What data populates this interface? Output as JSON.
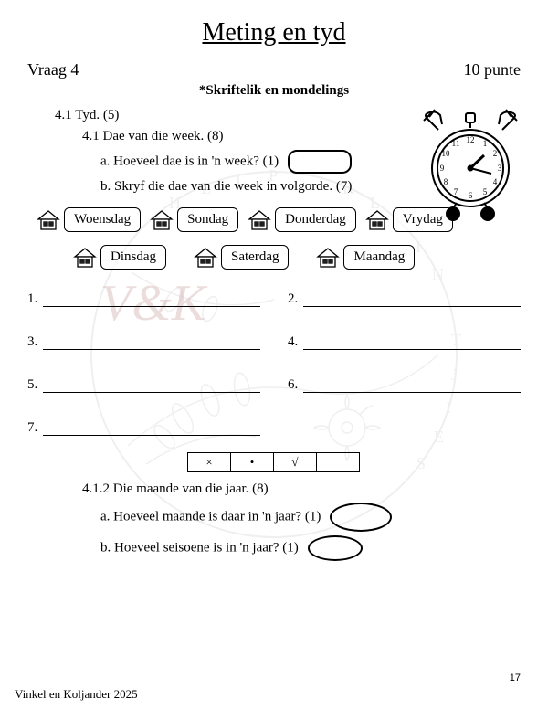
{
  "title": "Meting en tyd",
  "question_label": "Vraag 4",
  "points_label": "10 punte",
  "subtitle": "*Skriftelik en mondelings",
  "q41": "4.1 Tyd. (5)",
  "q41sub": "4.1 Dae van die week. (8)",
  "q41a": "a. Hoeveel dae is in 'n week? (1)",
  "q41b": "b. Skryf die dae van die week in volgorde. (7)",
  "days_row1": [
    "Woensdag",
    "Sondag",
    "Donderdag",
    "Vrydag"
  ],
  "days_row2": [
    "Dinsdag",
    "Saterdag",
    "Maandag"
  ],
  "blanks": [
    "1.",
    "2.",
    "3.",
    "4.",
    "5.",
    "6.",
    "7."
  ],
  "eval": [
    "×",
    "•",
    "√",
    ""
  ],
  "q412": "4.1.2 Die maande van die jaar. (8)",
  "q412a": "a. Hoeveel maande is daar in 'n jaar? (1)",
  "q412b": "b. Hoeveel seisoene is in 'n jaar? (1)",
  "page_num": "17",
  "footer": "Vinkel en Koljander 2025",
  "vk": "V&K"
}
